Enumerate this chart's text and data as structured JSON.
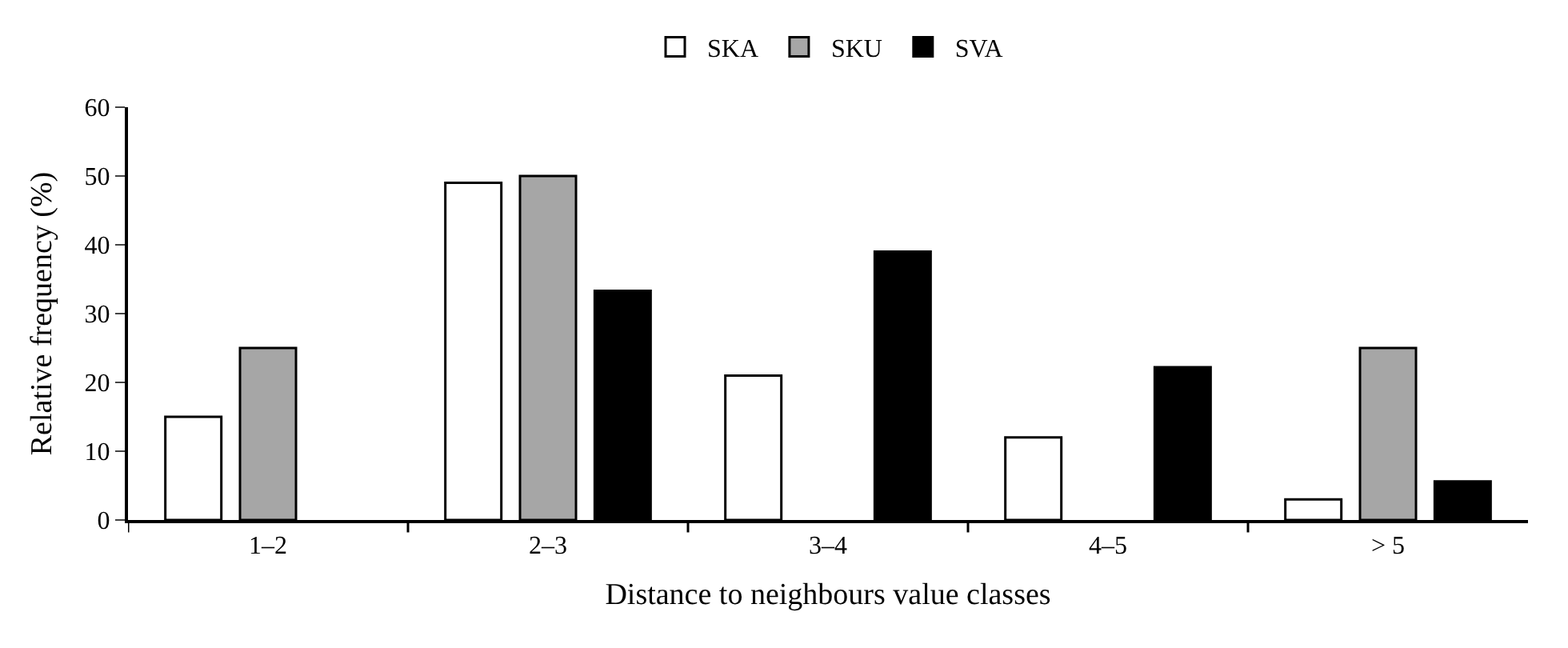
{
  "chart_data": {
    "type": "bar",
    "xlabel": "Distance to neighbours value classes",
    "ylabel": "Relative frequency (%)",
    "categories": [
      "1–2",
      "2–3",
      "3–4",
      "4–5",
      "> 5"
    ],
    "series": [
      {
        "name": "SKA",
        "color": "#ffffff",
        "values": [
          15,
          49,
          21,
          12,
          3
        ]
      },
      {
        "name": "SKU",
        "color": "#a6a6a6",
        "values": [
          25,
          50,
          null,
          null,
          25
        ]
      },
      {
        "name": "SVA",
        "color": "#000000",
        "values": [
          null,
          33.3,
          39,
          22.2,
          5.6
        ]
      }
    ],
    "ylim": [
      0,
      60
    ],
    "yticks": [
      0,
      10,
      20,
      30,
      40,
      50,
      60
    ],
    "legend": "top"
  }
}
